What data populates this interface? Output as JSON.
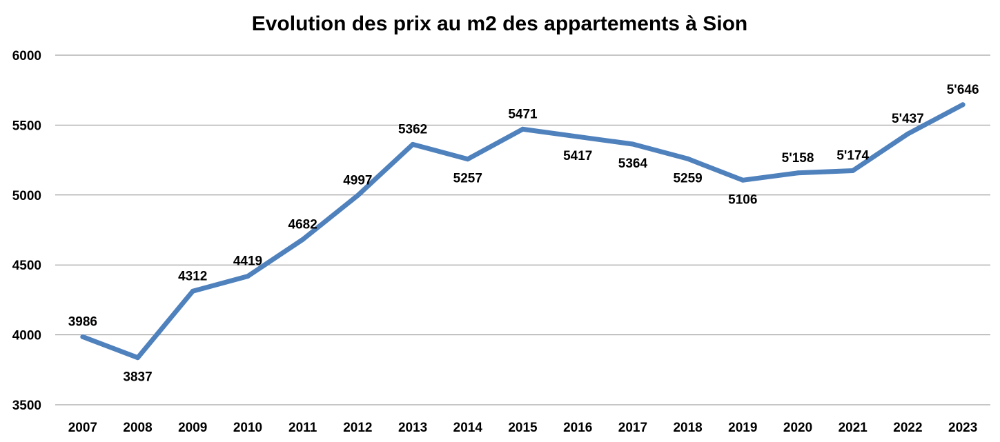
{
  "chart_data": {
    "type": "line",
    "title": "Evolution des prix au m2 des appartements à Sion",
    "xlabel": "",
    "ylabel": "",
    "ylim": [
      3500,
      6000
    ],
    "yticks": [
      "3500",
      "4000",
      "4500",
      "5000",
      "5500",
      "6000"
    ],
    "grid": true,
    "categories": [
      "2007",
      "2008",
      "2009",
      "2010",
      "2011",
      "2012",
      "2013",
      "2014",
      "2015",
      "2016",
      "2017",
      "2018",
      "2019",
      "2020",
      "2021",
      "2022",
      "2023"
    ],
    "series": [
      {
        "color": "#4F81BD",
        "values": [
          3986,
          3837,
          4312,
          4419,
          4682,
          4997,
          5362,
          5257,
          5471,
          5417,
          5364,
          5259,
          5106,
          5158,
          5174,
          5437,
          5646
        ],
        "labels": [
          "3986",
          "3837",
          "4312",
          "4419",
          "4682",
          "4997",
          "5362",
          "5257",
          "5471",
          "5417",
          "5364",
          "5259",
          "5106",
          "5'158",
          "5'174",
          "5'437",
          "5'646"
        ],
        "label_positions": [
          "above",
          "below",
          "above",
          "above",
          "above",
          "above",
          "above",
          "below",
          "above",
          "below",
          "below",
          "below",
          "below",
          "above",
          "above",
          "above",
          "above"
        ]
      }
    ]
  }
}
